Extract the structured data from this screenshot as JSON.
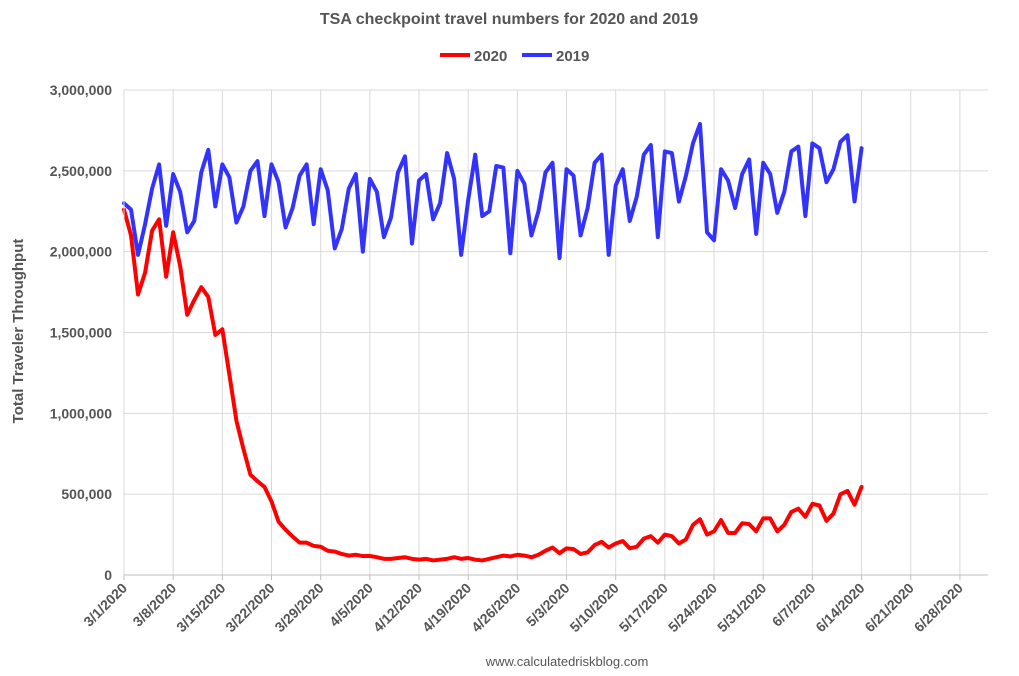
{
  "chart_data": {
    "type": "line",
    "title": "TSA checkpoint travel numbers for 2020 and 2019",
    "xlabel": "",
    "ylabel": "Total Traveler Throughput",
    "source": "www.calculatedriskblog.com",
    "legend_position": "top",
    "grid": true,
    "ylim": [
      0,
      3000000
    ],
    "yticks": [
      0,
      500000,
      1000000,
      1500000,
      2000000,
      2500000,
      3000000
    ],
    "ytick_labels": [
      "0",
      "500,000",
      "1,000,000",
      "1,500,000",
      "2,000,000",
      "2,500,000",
      "3,000,000"
    ],
    "xlim": [
      "2020-03-01",
      "2020-07-02"
    ],
    "xtick_dates": [
      "2020-03-01",
      "2020-03-08",
      "2020-03-15",
      "2020-03-22",
      "2020-03-29",
      "2020-04-05",
      "2020-04-12",
      "2020-04-19",
      "2020-04-26",
      "2020-05-03",
      "2020-05-10",
      "2020-05-17",
      "2020-05-24",
      "2020-05-31",
      "2020-06-07",
      "2020-06-14",
      "2020-06-21",
      "2020-06-28"
    ],
    "xtick_labels": [
      "3/1/2020",
      "3/8/2020",
      "3/15/2020",
      "3/22/2020",
      "3/29/2020",
      "4/5/2020",
      "4/12/2020",
      "4/19/2020",
      "4/26/2020",
      "5/3/2020",
      "5/10/2020",
      "5/17/2020",
      "5/24/2020",
      "5/31/2020",
      "6/7/2020",
      "6/14/2020",
      "6/21/2020",
      "6/28/2020"
    ],
    "x_start": "2020-03-01",
    "x_end": "2020-06-14",
    "series": [
      {
        "name": "2020",
        "color": "#ff0000",
        "values": [
          2260000,
          2100000,
          1735000,
          1870000,
          2130000,
          2200000,
          1845000,
          2120000,
          1910000,
          1610000,
          1700000,
          1780000,
          1720000,
          1485000,
          1520000,
          1240000,
          955000,
          780000,
          620000,
          580000,
          545000,
          455000,
          330000,
          280000,
          238000,
          200000,
          200000,
          180000,
          175000,
          150000,
          145000,
          130000,
          120000,
          125000,
          117000,
          118000,
          110000,
          100000,
          100000,
          105000,
          110000,
          100000,
          95000,
          100000,
          90000,
          95000,
          100000,
          110000,
          100000,
          105000,
          95000,
          90000,
          100000,
          110000,
          120000,
          115000,
          125000,
          120000,
          110000,
          125000,
          150000,
          170000,
          135000,
          165000,
          160000,
          130000,
          140000,
          185000,
          205000,
          170000,
          195000,
          210000,
          165000,
          175000,
          225000,
          240000,
          200000,
          250000,
          240000,
          195000,
          220000,
          310000,
          345000,
          250000,
          270000,
          340000,
          260000,
          260000,
          320000,
          315000,
          270000,
          350000,
          350000,
          270000,
          310000,
          390000,
          410000,
          360000,
          440000,
          430000,
          335000,
          380000,
          500000,
          520000,
          435000,
          545000
        ]
      },
      {
        "name": "2019",
        "color": "#3333ff",
        "values": [
          2300000,
          2260000,
          1980000,
          2170000,
          2390000,
          2540000,
          2160000,
          2480000,
          2370000,
          2120000,
          2190000,
          2490000,
          2630000,
          2280000,
          2540000,
          2460000,
          2180000,
          2280000,
          2500000,
          2560000,
          2220000,
          2540000,
          2430000,
          2150000,
          2270000,
          2470000,
          2540000,
          2170000,
          2510000,
          2380000,
          2020000,
          2140000,
          2390000,
          2480000,
          2000000,
          2450000,
          2370000,
          2090000,
          2210000,
          2490000,
          2590000,
          2050000,
          2440000,
          2480000,
          2200000,
          2300000,
          2610000,
          2450000,
          1980000,
          2320000,
          2600000,
          2220000,
          2250000,
          2530000,
          2520000,
          1990000,
          2500000,
          2420000,
          2100000,
          2250000,
          2490000,
          2550000,
          1960000,
          2510000,
          2470000,
          2100000,
          2270000,
          2550000,
          2600000,
          1980000,
          2410000,
          2510000,
          2190000,
          2340000,
          2600000,
          2660000,
          2090000,
          2620000,
          2610000,
          2310000,
          2470000,
          2670000,
          2790000,
          2120000,
          2070000,
          2510000,
          2440000,
          2270000,
          2480000,
          2570000,
          2110000,
          2550000,
          2480000,
          2240000,
          2370000,
          2620000,
          2650000,
          2220000,
          2670000,
          2640000,
          2430000,
          2510000,
          2680000,
          2720000,
          2310000,
          2640000
        ]
      }
    ]
  }
}
